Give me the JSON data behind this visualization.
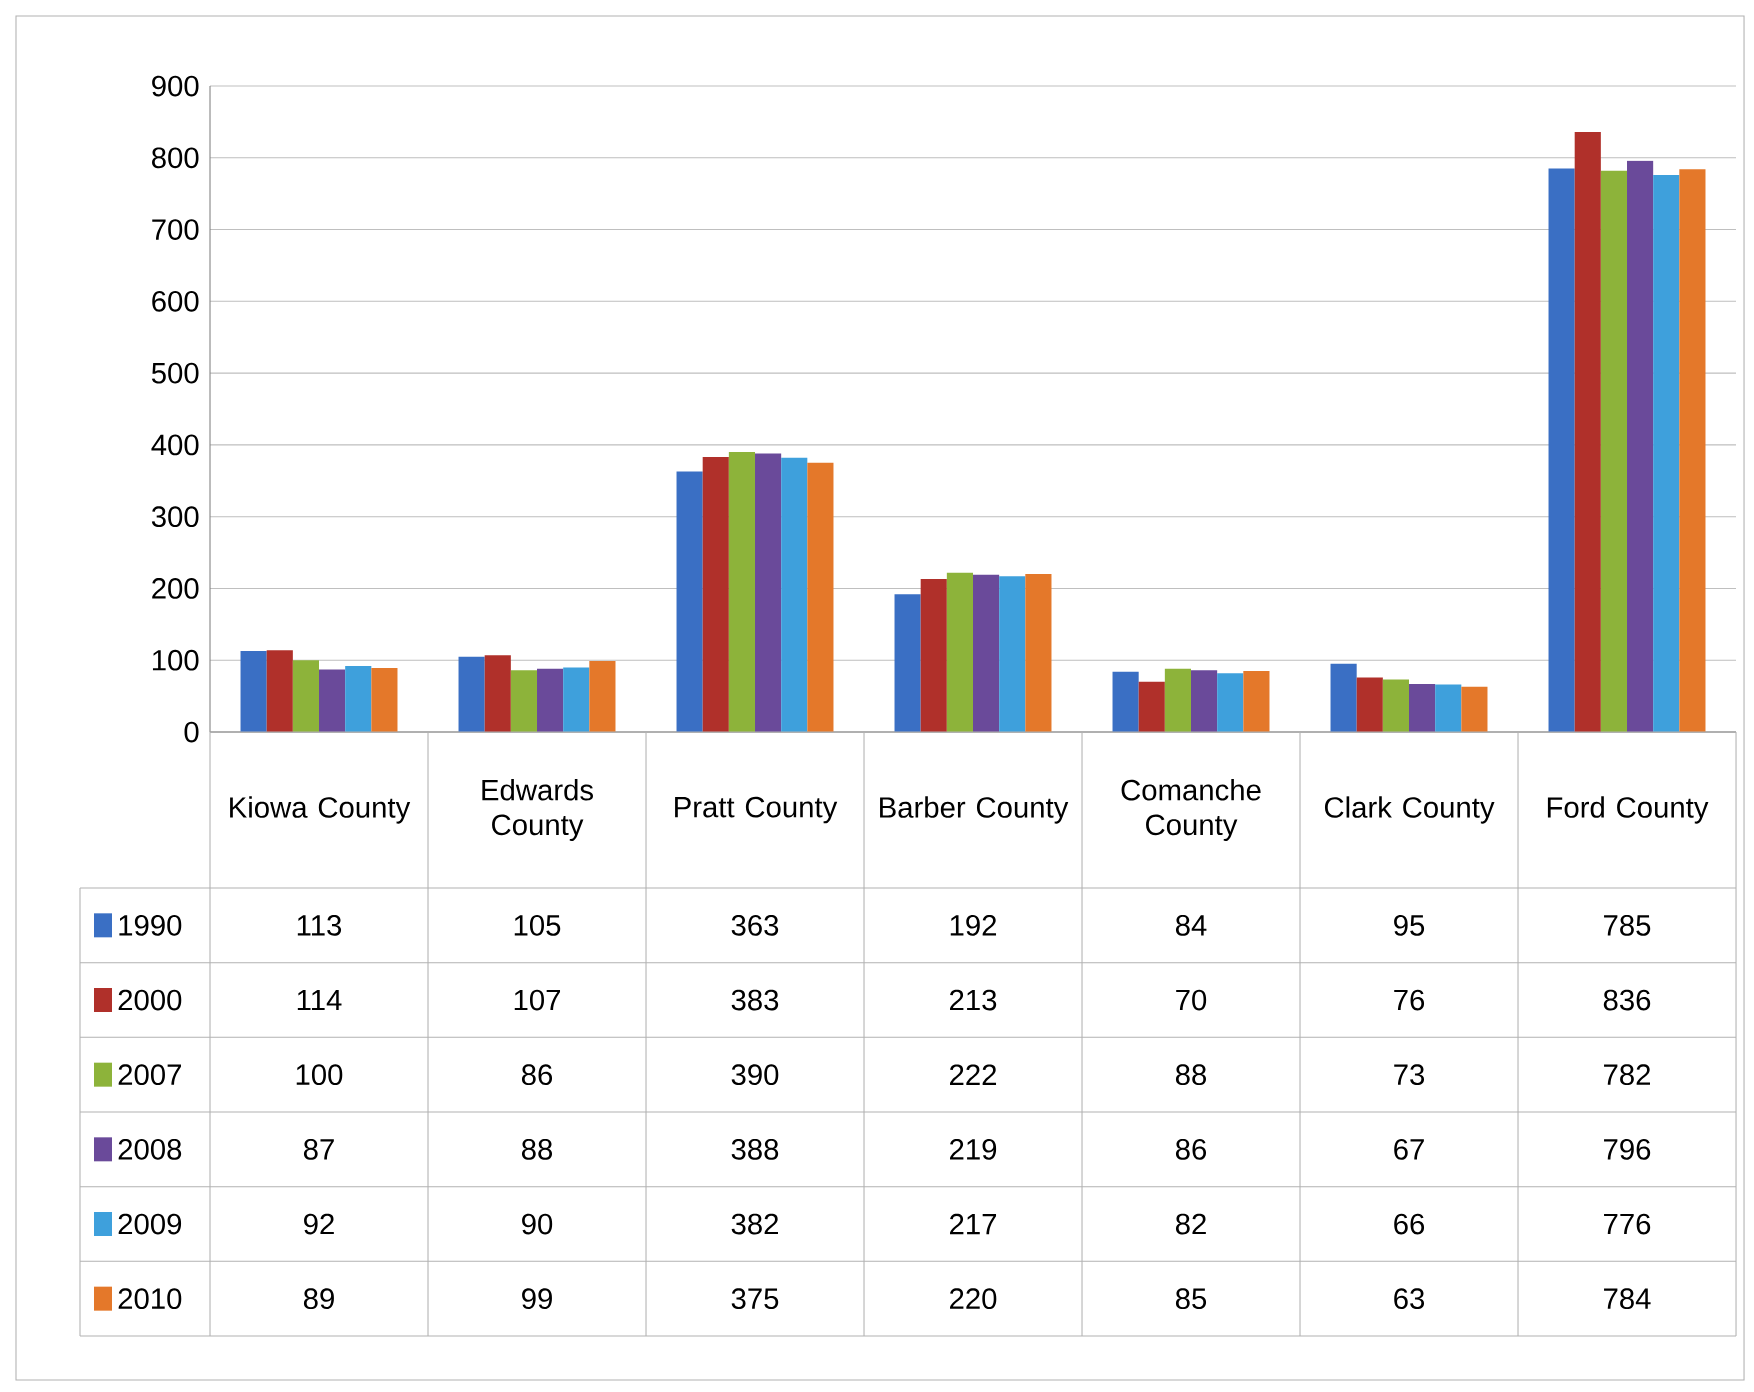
{
  "chart_data": {
    "type": "bar",
    "categories": [
      "Kiowa County",
      "Edwards County",
      "Pratt County",
      "Barber County",
      "Comanche County",
      "Clark County",
      "Ford County"
    ],
    "series": [
      {
        "name": "1990",
        "color": "#3a6fc4",
        "values": [
          113,
          105,
          363,
          192,
          84,
          95,
          785
        ]
      },
      {
        "name": "2000",
        "color": "#b0302a",
        "values": [
          114,
          107,
          383,
          213,
          70,
          76,
          836
        ]
      },
      {
        "name": "2007",
        "color": "#8db33a",
        "values": [
          100,
          86,
          390,
          222,
          88,
          73,
          782
        ]
      },
      {
        "name": "2008",
        "color": "#6a4a9a",
        "values": [
          87,
          88,
          388,
          219,
          86,
          67,
          796
        ]
      },
      {
        "name": "2009",
        "color": "#3ea0dc",
        "values": [
          92,
          90,
          382,
          217,
          82,
          66,
          776
        ]
      },
      {
        "name": "2010",
        "color": "#e4782a",
        "values": [
          89,
          99,
          375,
          220,
          85,
          63,
          784
        ]
      }
    ],
    "ylim": [
      0,
      900
    ],
    "yticks": [
      0,
      100,
      200,
      300,
      400,
      500,
      600,
      700,
      800,
      900
    ],
    "grid": "y",
    "legend": "bottom",
    "data_labels": true
  }
}
